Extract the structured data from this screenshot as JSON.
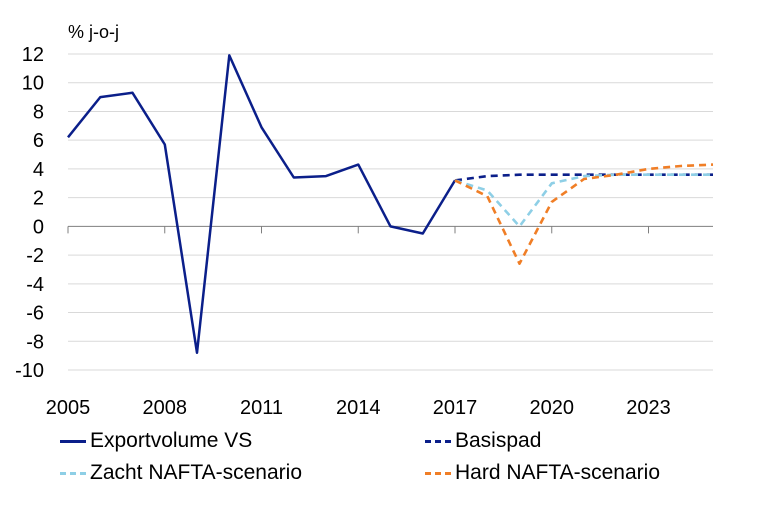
{
  "chart_data": {
    "type": "line",
    "ylabel": "% j-o-j",
    "ylim": [
      -10,
      12
    ],
    "yticks": [
      12,
      10,
      8,
      6,
      4,
      2,
      0,
      -2,
      -4,
      -6,
      -8,
      -10
    ],
    "xlim": [
      2005,
      2025
    ],
    "xticks": [
      2005,
      2008,
      2011,
      2014,
      2017,
      2020,
      2023
    ],
    "grid": true,
    "legend_position": "bottom",
    "series": [
      {
        "name": "Exportvolume VS",
        "color": "#0b1f8a",
        "style": "solid",
        "x": [
          2005,
          2006,
          2007,
          2008,
          2009,
          2010,
          2011,
          2012,
          2013,
          2014,
          2015,
          2016,
          2017
        ],
        "values": [
          6.2,
          9.0,
          9.3,
          5.7,
          -8.8,
          11.9,
          6.9,
          3.4,
          3.5,
          4.3,
          0.0,
          -0.5,
          3.2
        ]
      },
      {
        "name": "Basispad",
        "color": "#0b1f8a",
        "style": "dashed",
        "x": [
          2017,
          2018,
          2019,
          2020,
          2021,
          2022,
          2023,
          2024,
          2025
        ],
        "values": [
          3.2,
          3.5,
          3.6,
          3.6,
          3.6,
          3.6,
          3.6,
          3.6,
          3.6
        ]
      },
      {
        "name": "Zacht NAFTA-scenario",
        "color": "#8ecfe6",
        "style": "dashed",
        "x": [
          2017,
          2018,
          2019,
          2020,
          2021,
          2022,
          2023,
          2024,
          2025
        ],
        "values": [
          3.2,
          2.5,
          0.0,
          3.0,
          3.5,
          3.6,
          3.6,
          3.6,
          3.6
        ]
      },
      {
        "name": "Hard NAFTA-scenario",
        "color": "#f07e26",
        "style": "dashed",
        "x": [
          2017,
          2018,
          2019,
          2020,
          2021,
          2022,
          2023,
          2024,
          2025
        ],
        "values": [
          3.2,
          2.1,
          -2.6,
          1.7,
          3.3,
          3.6,
          4.0,
          4.2,
          4.3
        ]
      }
    ]
  }
}
